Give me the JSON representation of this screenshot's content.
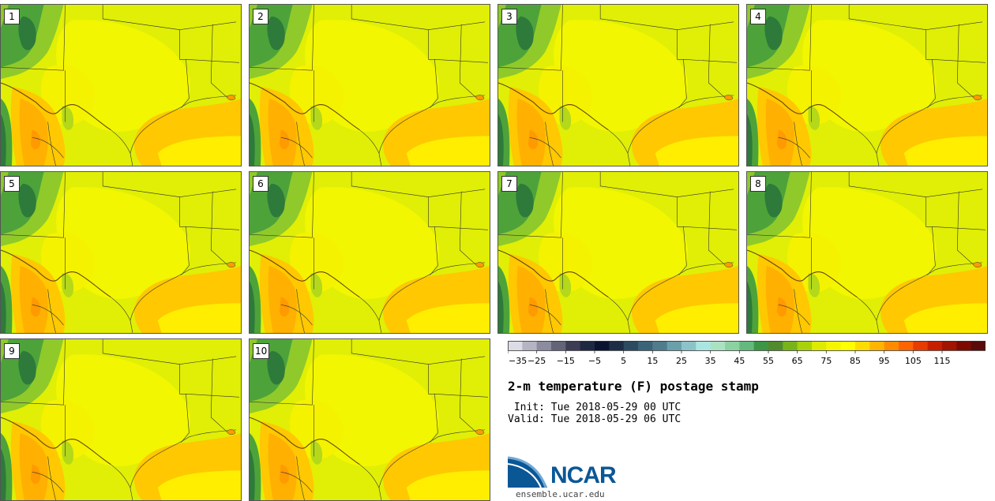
{
  "panels": [
    {
      "label": "1"
    },
    {
      "label": "2"
    },
    {
      "label": "3"
    },
    {
      "label": "4"
    },
    {
      "label": "5"
    },
    {
      "label": "6"
    },
    {
      "label": "7"
    },
    {
      "label": "8"
    },
    {
      "label": "9"
    },
    {
      "label": "10"
    }
  ],
  "colorbar": {
    "tick_labels": [
      "−35",
      "−25",
      "−15",
      "−5",
      "5",
      "15",
      "25",
      "35",
      "45",
      "55",
      "65",
      "75",
      "85",
      "95",
      "105",
      "115"
    ],
    "colors": [
      "#dcdce6",
      "#b4b4c4",
      "#8c8ca0",
      "#646478",
      "#3c3c55",
      "#1e2840",
      "#0a1430",
      "#1e2d46",
      "#2d4b5f",
      "#3c6478",
      "#507d8c",
      "#69a0aa",
      "#8cc3c8",
      "#aae6e1",
      "#aae1c3",
      "#8cd2a0",
      "#64b97d",
      "#3c9646",
      "#508c2d",
      "#78b419",
      "#aad20a",
      "#dceb00",
      "#f5f500",
      "#ffff00",
      "#ffdc00",
      "#ffb400",
      "#ff8c00",
      "#ff6400",
      "#e63c00",
      "#c81e00",
      "#a01400",
      "#7d0a00",
      "#5a0a0a"
    ]
  },
  "title": "2-m temperature (F) postage stamp",
  "init_text": " Init: Tue 2018-05-29 00 UTC",
  "valid_text": "Valid: Tue 2018-05-29 06 UTC",
  "logo": {
    "text": "NCAR",
    "url": "ensemble.ucar.edu"
  }
}
